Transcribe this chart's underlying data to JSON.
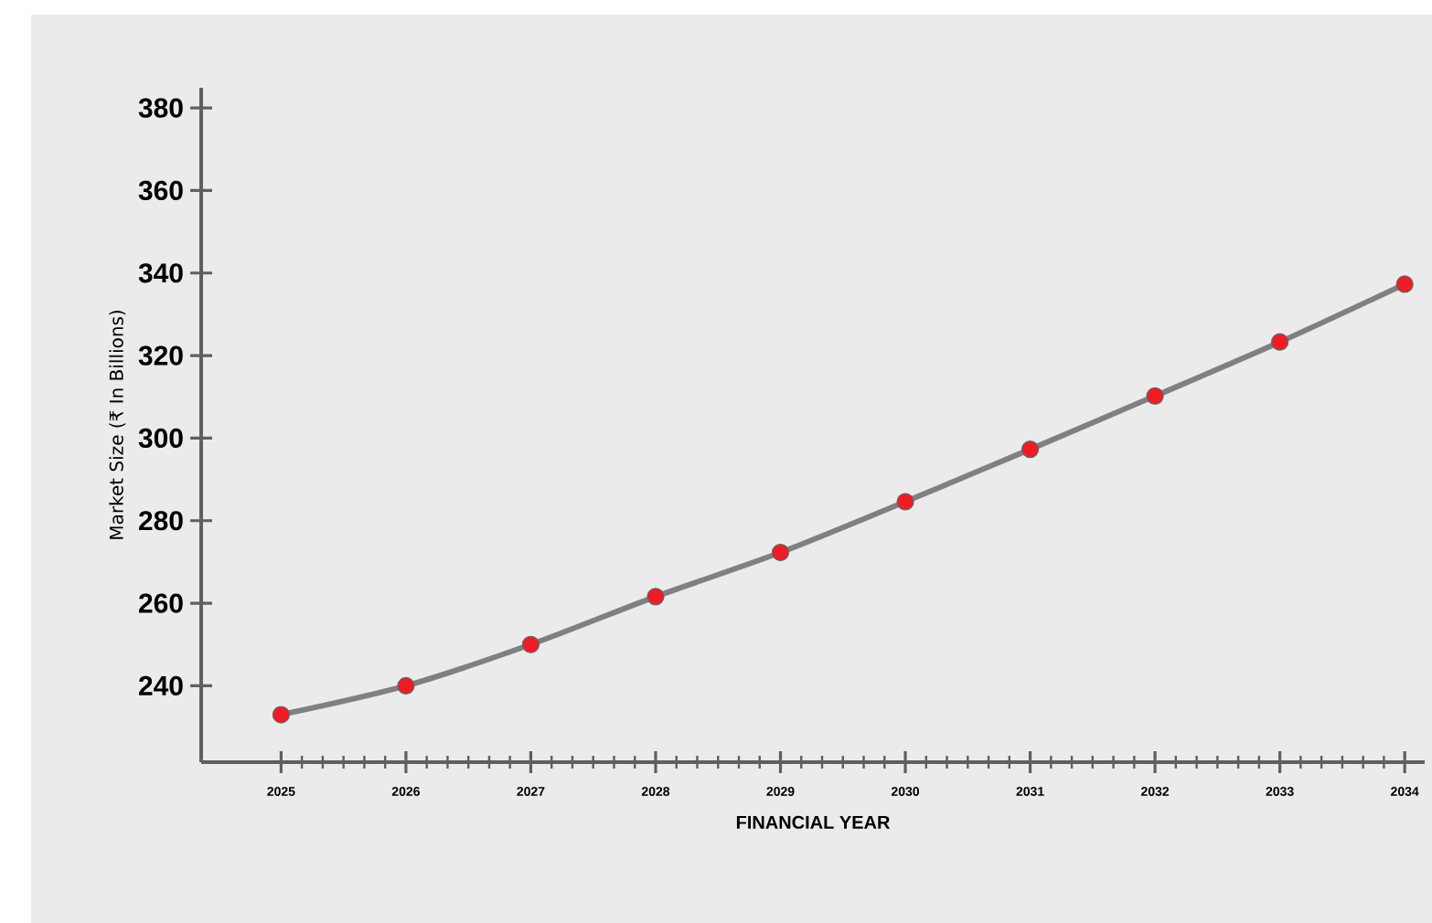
{
  "chart_data": {
    "type": "line",
    "xlabel": "FINANCIAL YEAR",
    "ylabel": "Market Size (₹ In Billions)",
    "x": [
      2025,
      2026,
      2027,
      2028,
      2029,
      2030,
      2031,
      2032,
      2033,
      2034
    ],
    "series": [
      {
        "color": "#808080",
        "values": [
          233,
          240,
          250,
          261.6,
          272.3,
          284.6,
          297.3,
          310.2,
          323.3,
          337.3
        ]
      }
    ],
    "xlim": [
      2024.36,
      2034.16
    ],
    "xticks": [
      2025,
      2026,
      2027,
      2028,
      2029,
      2030,
      2031,
      2032,
      2033,
      2034
    ],
    "ylim": [
      221.5,
      384.9
    ],
    "yticks": [
      240,
      260,
      280,
      300,
      320,
      340,
      360,
      380
    ],
    "marker": "circle",
    "line_style": "solid"
  }
}
